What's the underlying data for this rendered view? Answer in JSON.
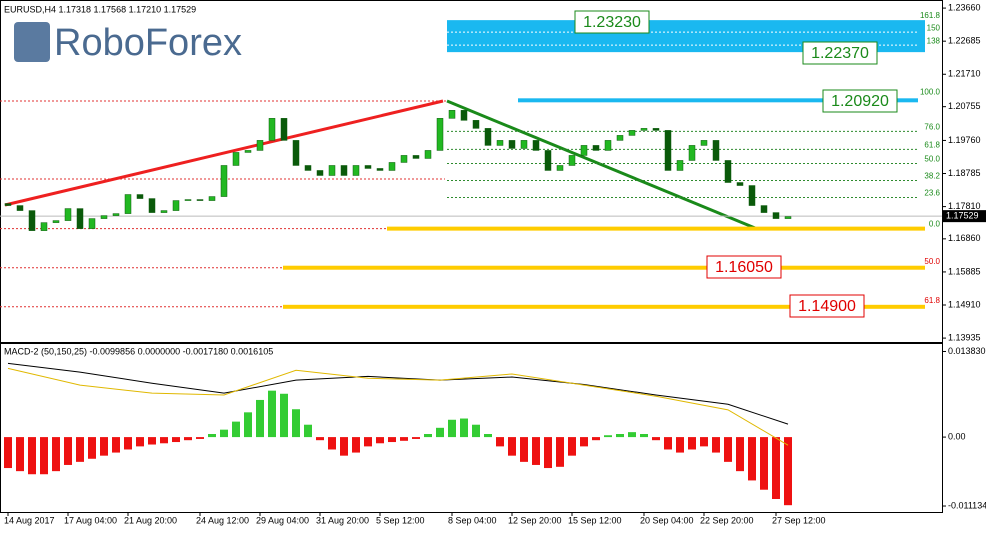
{
  "chart_data": [
    {
      "type": "candlestick",
      "title": "EURUSD,H4  1.17318 1.17568 1.17210 1.17529",
      "watermark": "RoboForex",
      "up_color": "#22b822",
      "down_color": "#0a5a0a",
      "categories": [
        "14 Aug 2017",
        null,
        null,
        null,
        null,
        "17 Aug 04:00",
        null,
        null,
        null,
        null,
        "21 Aug 20:00",
        null,
        null,
        null,
        null,
        null,
        "24 Aug 12:00",
        null,
        null,
        null,
        null,
        "29 Aug 04:00",
        null,
        null,
        null,
        null,
        "31 Aug 20:00",
        null,
        null,
        null,
        null,
        "5 Sep 12:00",
        null,
        null,
        null,
        null,
        null,
        "8 Sep 04:00",
        null,
        null,
        null,
        null,
        "12 Sep 20:00",
        null,
        null,
        null,
        null,
        "15 Sep 12:00",
        null,
        null,
        null,
        null,
        null,
        "20 Sep 04:00",
        null,
        null,
        null,
        null,
        "22 Sep 20:00",
        null,
        null,
        null,
        null,
        null,
        "27 Sep 12:00",
        null
      ],
      "open": [
        1.179,
        1.17841,
        1.17693,
        1.17102,
        1.17338,
        1.17398,
        1.17752,
        1.17161,
        1.17457,
        1.17545,
        1.17604,
        1.18166,
        1.18047,
        1.17634,
        1.17693,
        1.17988,
        1.18018,
        1.17988,
        1.18106,
        1.19022,
        1.19406,
        1.19465,
        1.19761,
        1.20411,
        1.19761,
        1.19022,
        1.18875,
        1.18727,
        1.19022,
        1.18727,
        1.19022,
        1.18934,
        1.18875,
        1.19111,
        1.19318,
        1.19229,
        1.19465,
        1.20411,
        1.20647,
        1.20352,
        1.20115,
        1.19613,
        1.19761,
        1.19524,
        1.19761,
        1.19465,
        1.18875,
        1.19022,
        1.19318,
        1.19613,
        1.19465,
        1.19761,
        1.19908,
        1.20056,
        1.20115,
        1.20056,
        1.18875,
        1.1917,
        1.19613,
        1.19761,
        1.1917,
        1.1852,
        1.18431,
        1.17841,
        1.17634,
        1.17457
      ],
      "close": [
        1.17841,
        1.17693,
        1.17102,
        1.17338,
        1.17398,
        1.17752,
        1.17161,
        1.17457,
        1.17545,
        1.17604,
        1.18166,
        1.18047,
        1.17634,
        1.17693,
        1.17988,
        1.18018,
        1.17988,
        1.18106,
        1.19022,
        1.19406,
        1.19465,
        1.19761,
        1.20411,
        1.19761,
        1.19022,
        1.18875,
        1.18727,
        1.19022,
        1.18727,
        1.19022,
        1.18934,
        1.18875,
        1.19111,
        1.19318,
        1.19229,
        1.19465,
        1.20411,
        1.20647,
        1.20352,
        1.20115,
        1.19613,
        1.19761,
        1.19524,
        1.19761,
        1.19465,
        1.18875,
        1.19022,
        1.19318,
        1.19613,
        1.19465,
        1.19761,
        1.19908,
        1.20056,
        1.20115,
        1.20056,
        1.18875,
        1.1917,
        1.19613,
        1.19761,
        1.1917,
        1.1852,
        1.18431,
        1.17841,
        1.17634,
        1.17457,
        1.17516
      ],
      "last_price": 1.17529,
      "ylim": [
        1.1382,
        1.2381
      ],
      "yticks": [
        {
          "value": 1.2366,
          "label": "1.23660"
        },
        1.22685,
        {
          "value": 1.2171,
          "label": "1.21710"
        },
        1.20755,
        {
          "value": 1.1976,
          "label": "1.19760"
        },
        1.18785,
        {
          "value": 1.1781,
          "label": "1.17810"
        },
        {
          "value": 1.1686,
          "label": "1.16860"
        },
        1.15885,
        {
          "value": 1.1491,
          "label": "1.14910"
        },
        1.13935
      ],
      "fib_upper": [
        {
          "label": "161.8",
          "price": 1.23305
        },
        {
          "label": "150",
          "price": 1.22951
        },
        {
          "label": "138",
          "price": 1.22567
        },
        {
          "label": "100.0",
          "price": 1.2106
        },
        {
          "label": "76.0",
          "price": 1.20027
        },
        {
          "label": "61.8",
          "price": 1.19495
        },
        {
          "label": "50.0",
          "price": 1.19081
        },
        {
          "label": "38.2",
          "price": 1.18579
        },
        {
          "label": "23.6",
          "price": 1.18077
        },
        {
          "label": "0.0",
          "price": 1.17161
        }
      ],
      "fib_lower": [
        {
          "label": "50.0",
          "price": 1.16009
        },
        {
          "label": "61.8",
          "price": 1.14857
        }
      ],
      "annotations": [
        {
          "text": "1.23230",
          "color": "#1a8a1a"
        },
        {
          "text": "1.22370",
          "color": "#1a8a1a"
        },
        {
          "text": "1.20920",
          "color": "#1a8a1a"
        },
        {
          "text": "1.16050",
          "color": "#e00000"
        },
        {
          "text": "1.14900",
          "color": "#e00000"
        }
      ]
    },
    {
      "type": "bar",
      "title": "MACD-2 (50,150,25) -0.0099856 0.0000000 -0.0017180 0.0016105",
      "pos_color": "#33cc33",
      "neg_color": "#ee1111",
      "values": [
        -0.005,
        -0.0055,
        -0.006,
        -0.006,
        -0.0055,
        -0.0045,
        -0.004,
        -0.0035,
        -0.003,
        -0.0025,
        -0.002,
        -0.0015,
        -0.0012,
        -0.001,
        -0.0008,
        -0.0005,
        -0.0003,
        0.0005,
        0.0012,
        0.0025,
        0.004,
        0.006,
        0.0075,
        0.007,
        0.0045,
        0.002,
        -0.0005,
        -0.002,
        -0.003,
        -0.0025,
        -0.0015,
        -0.001,
        -0.0008,
        -0.0006,
        -0.0003,
        0.0005,
        0.0015,
        0.0028,
        0.003,
        0.002,
        0.0005,
        -0.0015,
        -0.003,
        -0.004,
        -0.0045,
        -0.005,
        -0.0048,
        -0.003,
        -0.0015,
        -0.0005,
        0.0003,
        0.0005,
        0.0008,
        0.0005,
        -0.0005,
        -0.002,
        -0.0025,
        -0.002,
        -0.0015,
        -0.0025,
        -0.004,
        -0.0055,
        -0.007,
        -0.0085,
        -0.01,
        -0.011
      ],
      "lines": [
        {
          "color": "#000000",
          "x": [
            0,
            6,
            12,
            18,
            24,
            30,
            36,
            42,
            48,
            54,
            60,
            65
          ],
          "values": [
            0.0119,
            0.0105,
            0.0087,
            0.0071,
            0.0092,
            0.0098,
            0.0092,
            0.0097,
            0.0085,
            0.0068,
            0.0053,
            0.0021
          ]
        },
        {
          "color": "#e0b800",
          "x": [
            0,
            6,
            12,
            18,
            24,
            30,
            36,
            42,
            48,
            54,
            60,
            65
          ],
          "values": [
            0.0111,
            0.0084,
            0.0071,
            0.0068,
            0.0108,
            0.0095,
            0.0092,
            0.0102,
            0.0084,
            0.0066,
            0.0044,
            -0.0013
          ]
        }
      ],
      "ylim": [
        -0.0121,
        0.0152
      ],
      "yticks": [
        {
          "value": 0.01383,
          "label": "0.013830"
        },
        {
          "value": 0,
          "label": "0.00"
        },
        -0.011134
      ]
    }
  ]
}
